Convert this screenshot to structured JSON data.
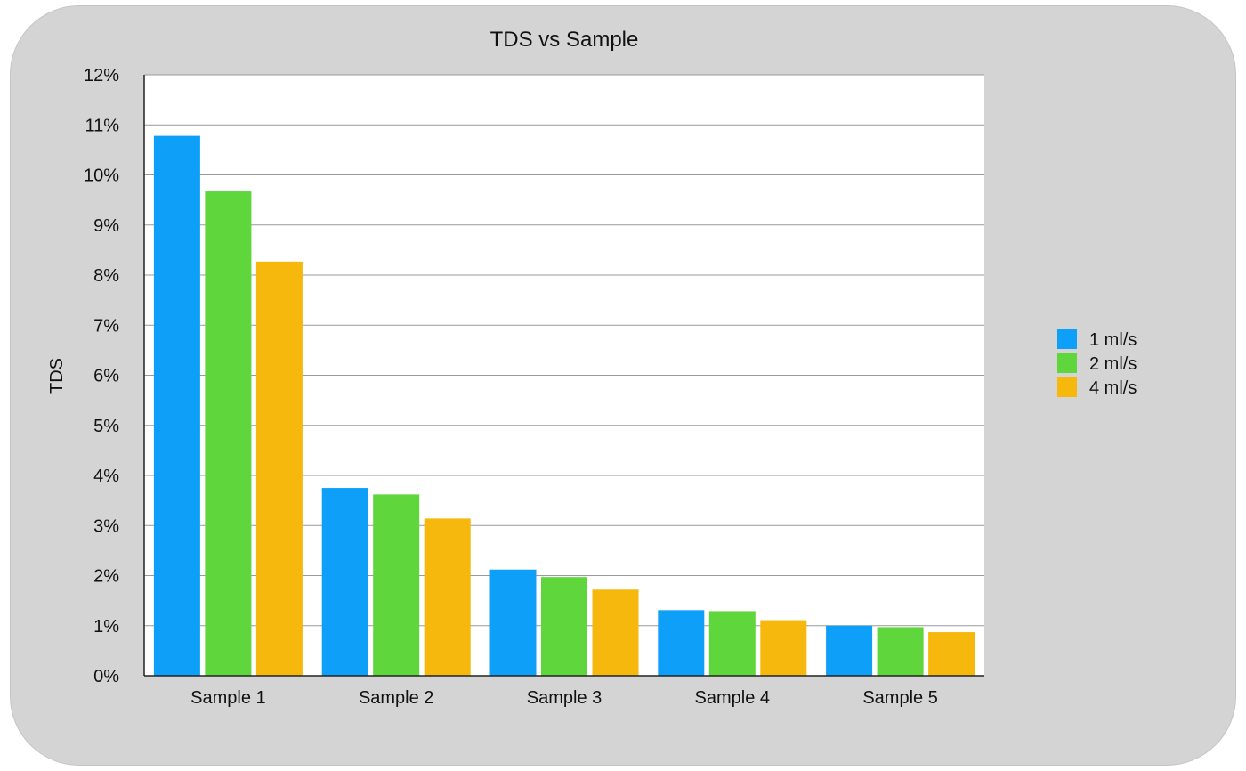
{
  "chart_data": {
    "type": "bar",
    "title": "TDS vs Sample",
    "xlabel": "",
    "ylabel": "TDS",
    "categories": [
      "Sample 1",
      "Sample 2",
      "Sample 3",
      "Sample 4",
      "Sample 5"
    ],
    "series": [
      {
        "name": "1 ml/s",
        "color": "#0ea0f8",
        "values": [
          10.78,
          3.75,
          2.12,
          1.31,
          1.0
        ]
      },
      {
        "name": "2 ml/s",
        "color": "#5fd63b",
        "values": [
          9.67,
          3.62,
          1.97,
          1.29,
          0.97
        ]
      },
      {
        "name": "4 ml/s",
        "color": "#f6b80d",
        "values": [
          8.27,
          3.14,
          1.72,
          1.11,
          0.87
        ]
      }
    ],
    "ylim": [
      0,
      12
    ],
    "yticks": [
      "0%",
      "1%",
      "2%",
      "3%",
      "4%",
      "5%",
      "6%",
      "7%",
      "8%",
      "9%",
      "10%",
      "11%",
      "12%"
    ],
    "grid": true,
    "legend_position": "right",
    "background_color": "#d4d4d4",
    "plot_background": "#ffffff"
  }
}
